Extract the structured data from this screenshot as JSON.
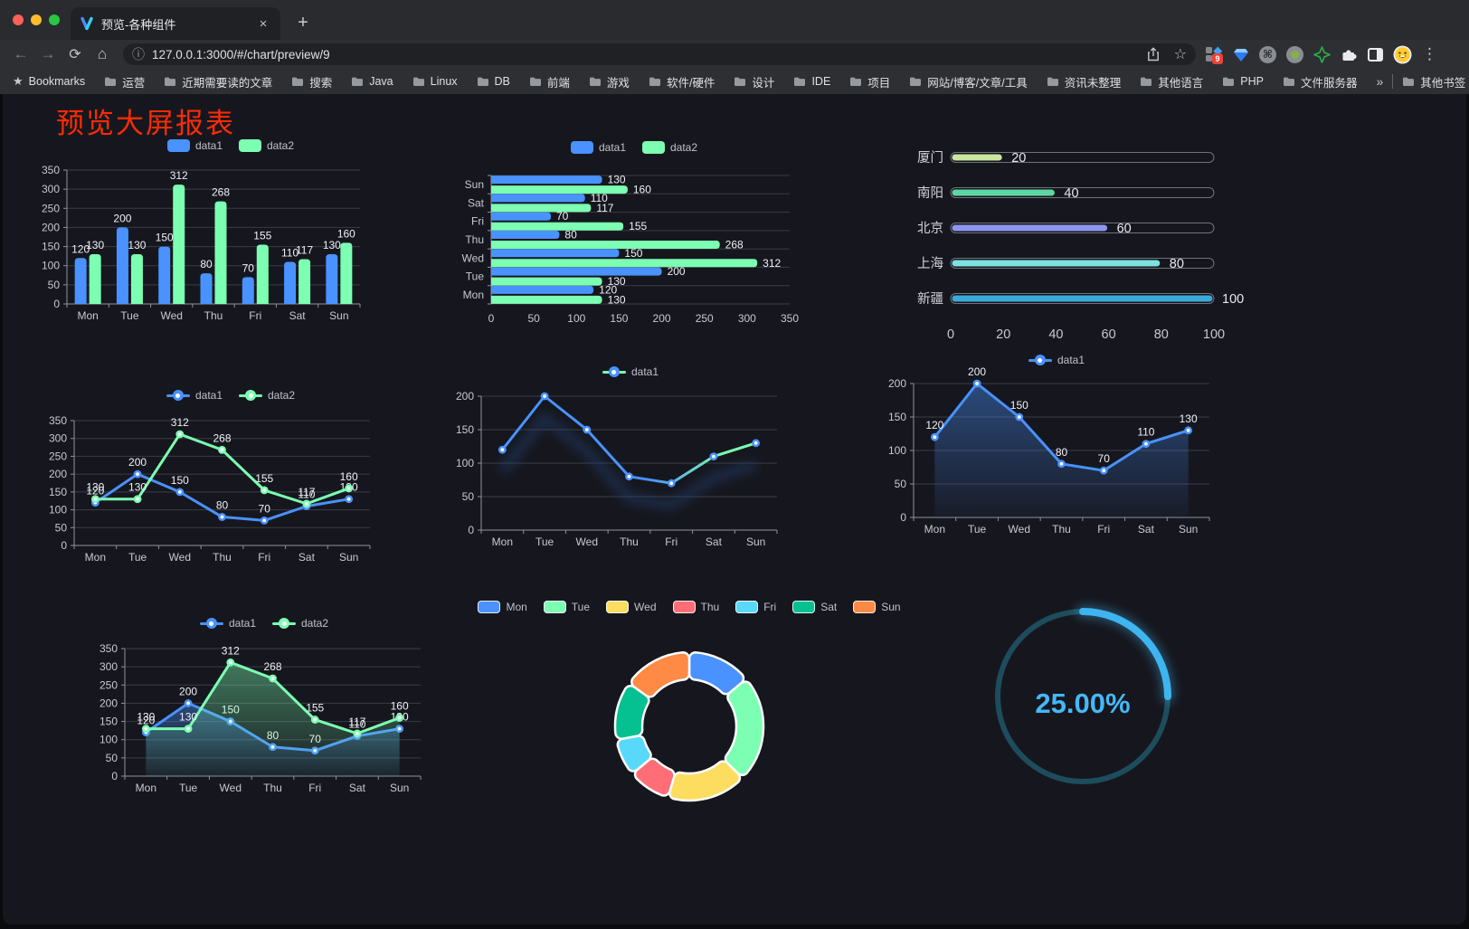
{
  "browser": {
    "traffic_lights": [
      "#ff5f57",
      "#febc2e",
      "#28c840"
    ],
    "tab": {
      "title": "预览-各种组件"
    },
    "url": "127.0.0.1:3000/#/chart/preview/9",
    "nav_icons": [
      "back",
      "forward",
      "reload",
      "home"
    ],
    "url_icons": [
      "info",
      "share",
      "bookmark-star"
    ],
    "extension_icons": [
      "extensions-grid",
      "gem",
      "command-circle",
      "record-circle",
      "sparkle-star",
      "puzzle",
      "split-screen",
      "avatar",
      "menu-dots"
    ],
    "extensions_badge": "9",
    "bookmarks_left": [
      {
        "icon": "star",
        "label": "Bookmarks"
      },
      {
        "icon": "folder",
        "label": "运营"
      },
      {
        "icon": "folder",
        "label": "近期需要读的文章"
      },
      {
        "icon": "folder",
        "label": "搜索"
      },
      {
        "icon": "folder",
        "label": "Java"
      },
      {
        "icon": "folder",
        "label": "Linux"
      },
      {
        "icon": "folder",
        "label": "DB"
      },
      {
        "icon": "folder",
        "label": "前端"
      },
      {
        "icon": "folder",
        "label": "游戏"
      },
      {
        "icon": "folder",
        "label": "软件/硬件"
      },
      {
        "icon": "folder",
        "label": "设计"
      },
      {
        "icon": "folder",
        "label": "IDE"
      },
      {
        "icon": "folder",
        "label": "项目"
      },
      {
        "icon": "folder",
        "label": "网站/博客/文章/工具"
      },
      {
        "icon": "folder",
        "label": "资讯未整理"
      },
      {
        "icon": "folder",
        "label": "其他语言"
      },
      {
        "icon": "folder",
        "label": "PHP"
      },
      {
        "icon": "folder",
        "label": "文件服务器"
      },
      {
        "icon": "chevrons",
        "label": "»"
      }
    ],
    "bookmarks_right": {
      "icon": "folder",
      "label": "其他书签"
    }
  },
  "page": {
    "title": "预览大屏报表",
    "title_color": "#fb2b05",
    "panel_bg": "#16171e"
  },
  "chart_data": [
    {
      "name": "grouped-bar",
      "type": "bar",
      "categories": [
        "Mon",
        "Tue",
        "Wed",
        "Thu",
        "Fri",
        "Sat",
        "Sun"
      ],
      "series": [
        {
          "name": "data1",
          "color": "#4992ff",
          "values": [
            120,
            200,
            150,
            80,
            70,
            110,
            130
          ]
        },
        {
          "name": "data2",
          "color": "#7cffb2",
          "values": [
            130,
            130,
            312,
            268,
            155,
            117,
            160
          ]
        }
      ],
      "ylim": [
        0,
        350
      ],
      "yticks": [
        0,
        50,
        100,
        150,
        200,
        250,
        300,
        350
      ],
      "legend_position": "top",
      "legend_style": "rect",
      "value_labels": true,
      "grid": true
    },
    {
      "name": "horizontal-grouped-bar",
      "type": "bar-horizontal",
      "categories": [
        "Mon",
        "Tue",
        "Wed",
        "Thu",
        "Fri",
        "Sat",
        "Sun"
      ],
      "category_order_top_to_bottom": [
        "Sun",
        "Sat",
        "Fri",
        "Thu",
        "Wed",
        "Tue",
        "Mon"
      ],
      "series": [
        {
          "name": "data1",
          "color": "#4992ff",
          "values": [
            120,
            200,
            150,
            80,
            70,
            110,
            130
          ]
        },
        {
          "name": "data2",
          "color": "#7cffb2",
          "values": [
            130,
            130,
            312,
            268,
            155,
            117,
            160
          ]
        }
      ],
      "xlim": [
        0,
        350
      ],
      "xticks": [
        0,
        50,
        100,
        150,
        200,
        250,
        300,
        350
      ],
      "legend_position": "top",
      "legend_style": "rect",
      "value_labels": true
    },
    {
      "name": "city-progress",
      "type": "progress-bar",
      "max": 100,
      "xticks": [
        0,
        20,
        40,
        60,
        80,
        100
      ],
      "items": [
        {
          "label": "厦门",
          "value": 20,
          "color": "#c9e7a1"
        },
        {
          "label": "南阳",
          "value": 40,
          "color": "#5ed6a4"
        },
        {
          "label": "北京",
          "value": 60,
          "color": "#8d95ee"
        },
        {
          "label": "上海",
          "value": 80,
          "color": "#7ce2e0"
        },
        {
          "label": "新疆",
          "value": 100,
          "color": "#3ca8da"
        }
      ]
    },
    {
      "name": "double-line",
      "type": "line",
      "categories": [
        "Mon",
        "Tue",
        "Wed",
        "Thu",
        "Fri",
        "Sat",
        "Sun"
      ],
      "series": [
        {
          "name": "data1",
          "color": "#4992ff",
          "values": [
            120,
            200,
            150,
            80,
            70,
            110,
            130
          ],
          "value_labels": true
        },
        {
          "name": "data2",
          "color": "#7cffb2",
          "values": [
            130,
            130,
            312,
            268,
            155,
            117,
            160
          ],
          "value_labels": true
        }
      ],
      "ylim": [
        0,
        350
      ],
      "yticks": [
        0,
        50,
        100,
        150,
        200,
        250,
        300,
        350
      ],
      "legend_position": "top",
      "legend_style": "line"
    },
    {
      "name": "gradient-line",
      "type": "line",
      "categories": [
        "Mon",
        "Tue",
        "Wed",
        "Thu",
        "Fri",
        "Sat",
        "Sun"
      ],
      "series": [
        {
          "name": "data1",
          "color": "#4992ff",
          "gradient_to": "#7cffb2",
          "shadow": true,
          "values": [
            120,
            200,
            150,
            80,
            70,
            110,
            130
          ],
          "value_labels": false
        }
      ],
      "ylim": [
        0,
        200
      ],
      "yticks": [
        0,
        50,
        100,
        150,
        200
      ],
      "legend_position": "top",
      "legend_style": "line"
    },
    {
      "name": "area-line",
      "type": "line",
      "categories": [
        "Mon",
        "Tue",
        "Wed",
        "Thu",
        "Fri",
        "Sat",
        "Sun"
      ],
      "series": [
        {
          "name": "data1",
          "color": "#4992ff",
          "area": true,
          "values": [
            120,
            200,
            150,
            80,
            70,
            110,
            130
          ],
          "value_labels": true
        }
      ],
      "ylim": [
        0,
        200
      ],
      "yticks": [
        0,
        50,
        100,
        150,
        200
      ],
      "legend_position": "top",
      "legend_style": "line"
    },
    {
      "name": "double-area-line",
      "type": "line",
      "categories": [
        "Mon",
        "Tue",
        "Wed",
        "Thu",
        "Fri",
        "Sat",
        "Sun"
      ],
      "series": [
        {
          "name": "data1",
          "color": "#4992ff",
          "area": true,
          "values": [
            120,
            200,
            150,
            80,
            70,
            110,
            130
          ],
          "value_labels": true
        },
        {
          "name": "data2",
          "color": "#7cffb2",
          "area": true,
          "values": [
            130,
            130,
            312,
            268,
            155,
            117,
            160
          ],
          "value_labels": true
        }
      ],
      "ylim": [
        0,
        350
      ],
      "yticks": [
        0,
        50,
        100,
        150,
        200,
        250,
        300,
        350
      ],
      "legend_position": "top",
      "legend_style": "line"
    },
    {
      "name": "week-donut",
      "type": "pie",
      "inner_radius_ratio": 0.63,
      "border_color": "#ffffff",
      "legend_position": "top",
      "legend_style": "rect-border",
      "items": [
        {
          "label": "Mon",
          "value": 120,
          "color": "#4992ff"
        },
        {
          "label": "Tue",
          "value": 200,
          "color": "#7cffb2"
        },
        {
          "label": "Wed",
          "value": 150,
          "color": "#fddd60"
        },
        {
          "label": "Thu",
          "value": 80,
          "color": "#ff6e76"
        },
        {
          "label": "Fri",
          "value": 70,
          "color": "#58d9f9"
        },
        {
          "label": "Sat",
          "value": 110,
          "color": "#05c091"
        },
        {
          "label": "Sun",
          "value": 130,
          "color": "#ff8a45"
        }
      ]
    },
    {
      "name": "percent-gauge",
      "type": "gauge",
      "value": 25,
      "max": 100,
      "label": "25.00%",
      "color": "#3eb5f1",
      "track_color": "#1d4d5c"
    }
  ]
}
